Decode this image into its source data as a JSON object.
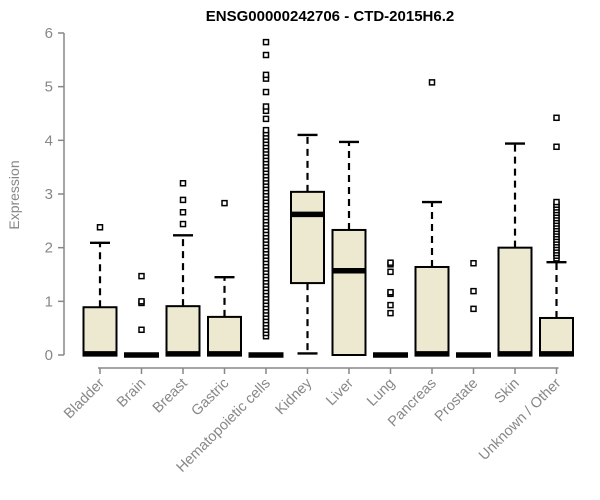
{
  "title": "ENSG00000242706 - CTD-2015H6.2",
  "y_axis": {
    "label": "Expression",
    "tick_labels": [
      "0",
      "1",
      "2",
      "3",
      "4",
      "5",
      "6"
    ],
    "min": 0,
    "max": 6
  },
  "style": {
    "box_fill": "#EDE8D0",
    "box_stroke": "#000000",
    "median_color": "#000000",
    "whisker_color": "#000000",
    "outlier_stroke": "#000000",
    "outlier_fill": "#ffffff",
    "axis_color": "#878787",
    "tick_text_color": "#878787",
    "title_color": "#000000"
  },
  "chart_data": {
    "type": "boxplot",
    "title": "ENSG00000242706 - CTD-2015H6.2",
    "xlabel": "",
    "ylabel": "Expression",
    "ylim": [
      0,
      6
    ],
    "yticks": [
      0,
      1,
      2,
      3,
      4,
      5,
      6
    ],
    "grid": false,
    "legend": false,
    "categories": [
      "Bladder",
      "Brain",
      "Breast",
      "Gastric",
      "Hematopoietic cells",
      "Kidney",
      "Liver",
      "Lung",
      "Pancreas",
      "Prostate",
      "Skin",
      "Unknown / Other"
    ],
    "series": [
      {
        "name": "Bladder",
        "q1": 0,
        "median": 0.02,
        "q3": 0.89,
        "whisker_low": 0,
        "whisker_high": 2.09,
        "outliers": [
          2.38
        ]
      },
      {
        "name": "Brain",
        "q1": 0,
        "median": 0,
        "q3": 0,
        "whisker_low": 0,
        "whisker_high": 0,
        "outliers": [
          0.47,
          0.97,
          1.0,
          1.47
        ]
      },
      {
        "name": "Breast",
        "q1": 0,
        "median": 0.02,
        "q3": 0.91,
        "whisker_low": 0,
        "whisker_high": 2.23,
        "outliers": [
          2.44,
          2.66,
          2.89,
          3.2
        ]
      },
      {
        "name": "Gastric",
        "q1": 0,
        "median": 0.02,
        "q3": 0.71,
        "whisker_low": 0,
        "whisker_high": 1.45,
        "outliers": [
          2.83
        ]
      },
      {
        "name": "Hematopoietic cells",
        "q1": 0,
        "median": 0,
        "q3": 0,
        "whisker_low": 0,
        "whisker_high": 0,
        "outliers": [
          0.35,
          0.41,
          0.47,
          0.53,
          0.59,
          0.65,
          0.71,
          0.77,
          0.83,
          0.89,
          0.95,
          1.01,
          1.07,
          1.13,
          1.19,
          1.25,
          1.31,
          1.37,
          1.43,
          1.49,
          1.55,
          1.61,
          1.67,
          1.73,
          1.79,
          1.85,
          1.91,
          1.97,
          2.03,
          2.09,
          2.15,
          2.21,
          2.27,
          2.33,
          2.39,
          2.45,
          2.51,
          2.57,
          2.63,
          2.69,
          2.75,
          2.81,
          2.87,
          2.93,
          2.99,
          3.05,
          3.11,
          3.17,
          3.23,
          3.29,
          3.35,
          3.41,
          3.47,
          3.53,
          3.59,
          3.65,
          3.71,
          3.77,
          3.83,
          3.89,
          3.95,
          4.01,
          4.07,
          4.13,
          4.19,
          4.4,
          4.55,
          4.63,
          4.9,
          5.15,
          5.22,
          5.59,
          5.83
        ]
      },
      {
        "name": "Kidney",
        "q1": 1.34,
        "median": 2.62,
        "q3": 3.04,
        "whisker_low": 0.03,
        "whisker_high": 4.1,
        "outliers": []
      },
      {
        "name": "Liver",
        "q1": 0,
        "median": 1.57,
        "q3": 2.33,
        "whisker_low": 0,
        "whisker_high": 3.97,
        "outliers": []
      },
      {
        "name": "Lung",
        "q1": 0,
        "median": 0,
        "q3": 0,
        "whisker_low": 0,
        "whisker_high": 0,
        "outliers": [
          0.78,
          0.93,
          1.14,
          1.17,
          1.55,
          1.69,
          1.72
        ]
      },
      {
        "name": "Pancreas",
        "q1": 0,
        "median": 0.02,
        "q3": 1.64,
        "whisker_low": 0,
        "whisker_high": 2.85,
        "outliers": [
          5.08
        ]
      },
      {
        "name": "Prostate",
        "q1": 0,
        "median": 0,
        "q3": 0,
        "whisker_low": 0,
        "whisker_high": 0,
        "outliers": [
          0.86,
          1.19,
          1.71
        ]
      },
      {
        "name": "Skin",
        "q1": 0,
        "median": 0.02,
        "q3": 2.0,
        "whisker_low": 0,
        "whisker_high": 3.94,
        "outliers": []
      },
      {
        "name": "Unknown / Other",
        "q1": 0,
        "median": 0.02,
        "q3": 0.69,
        "whisker_low": 0,
        "whisker_high": 1.73,
        "outliers": [
          1.8,
          1.85,
          1.9,
          1.95,
          2.0,
          2.05,
          2.1,
          2.15,
          2.2,
          2.25,
          2.3,
          2.35,
          2.4,
          2.45,
          2.5,
          2.55,
          2.6,
          2.65,
          2.7,
          2.75,
          2.8,
          2.85,
          3.88,
          4.42
        ]
      }
    ]
  }
}
